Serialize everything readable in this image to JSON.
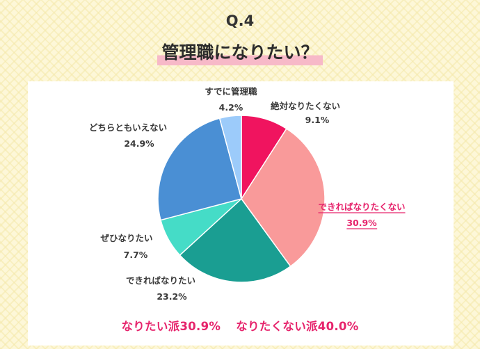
{
  "header": {
    "question_number": "Q.4",
    "title": "管理職になりたい？"
  },
  "summary": {
    "want": "なりたい派30.9%",
    "not_want": "なりたくない派40.0%"
  },
  "chart_data": {
    "type": "pie",
    "title": "",
    "start_angle_deg": 0,
    "direction": "clockwise",
    "slices": [
      {
        "label": "絶対なりたくない",
        "value": 9.1,
        "value_label": "9.1%",
        "color": "#f0145f",
        "emphasized": false
      },
      {
        "label": "できればなりたくない",
        "value": 30.9,
        "value_label": "30.9%",
        "color": "#f99a9a",
        "emphasized": true
      },
      {
        "label": "できればなりたい",
        "value": 23.2,
        "value_label": "23.2%",
        "color": "#1a9e92",
        "emphasized": false
      },
      {
        "label": "ぜひなりたい",
        "value": 7.7,
        "value_label": "7.7%",
        "color": "#45dcc7",
        "emphasized": false
      },
      {
        "label": "どちらともいえない",
        "value": 24.9,
        "value_label": "24.9%",
        "color": "#4a8fd4",
        "emphasized": false
      },
      {
        "label": "すでに管理職",
        "value": 4.2,
        "value_label": "4.2%",
        "color": "#9ccbfa",
        "emphasized": false
      }
    ],
    "emphasis_color": "#e6246c"
  }
}
